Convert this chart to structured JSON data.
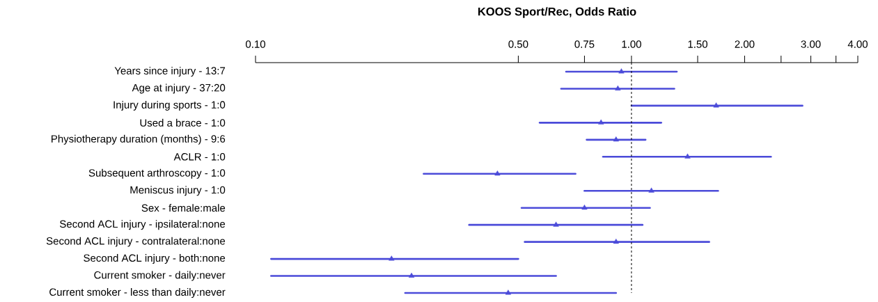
{
  "chart_data": {
    "type": "scatter",
    "title": "KOOS Sport/Rec, Odds Ratio",
    "orientation": "horizontal",
    "log": "x",
    "marker": "triangle",
    "categories": [
      "Years since injury - 13:7",
      "Age at injury - 37:20",
      "Injury during sports - 1:0",
      "Used a brace - 1:0",
      "Physiotherapy duration (months) - 9:6",
      "ACLR - 1:0",
      "Subsequent arthroscopy - 1:0",
      "Meniscus injury - 1:0",
      "Sex - female:male",
      "Second ACL injury - ipsilateral:none",
      "Second ACL injury - contralateral:none",
      "Second ACL injury - both:none",
      "Current smoker - daily:never",
      "Current smoker - less than daily:never"
    ],
    "series": [
      {
        "color": "#4b4bd9",
        "values": [
          0.94,
          0.92,
          1.68,
          0.83,
          0.91,
          1.41,
          0.44,
          1.13,
          0.75,
          0.63,
          0.91,
          0.23,
          0.26,
          0.47
        ],
        "errors": [
          [
            0.67,
            1.32
          ],
          [
            0.65,
            1.3
          ],
          [
            1.0,
            2.85
          ],
          [
            0.57,
            1.2
          ],
          [
            0.76,
            1.09
          ],
          [
            0.84,
            2.35
          ],
          [
            0.28,
            0.71
          ],
          [
            0.75,
            1.7
          ],
          [
            0.51,
            1.12
          ],
          [
            0.37,
            1.07
          ],
          [
            0.52,
            1.61
          ],
          [
            0.11,
            0.5
          ],
          [
            0.11,
            0.63
          ],
          [
            0.25,
            0.91
          ]
        ]
      }
    ],
    "xlim": [
      0.1,
      4.0
    ],
    "xticks": [
      {
        "value": 0.1,
        "label": "0.10"
      },
      {
        "value": 0.5,
        "label": "0.50"
      },
      {
        "value": 0.75,
        "label": "0.75"
      },
      {
        "value": 1.0,
        "label": "1.00"
      },
      {
        "value": 1.5,
        "label": "1.50"
      },
      {
        "value": 2.0,
        "label": "2.00"
      },
      {
        "value": 2.5,
        "label": null
      },
      {
        "value": 3.0,
        "label": "3.00"
      },
      {
        "value": 3.5,
        "label": null
      },
      {
        "value": 4.0,
        "label": "4.00"
      }
    ],
    "ref_lines": [
      {
        "axis": "x",
        "value": 1.0,
        "line_style": "dashed",
        "color": "#000000"
      }
    ]
  }
}
